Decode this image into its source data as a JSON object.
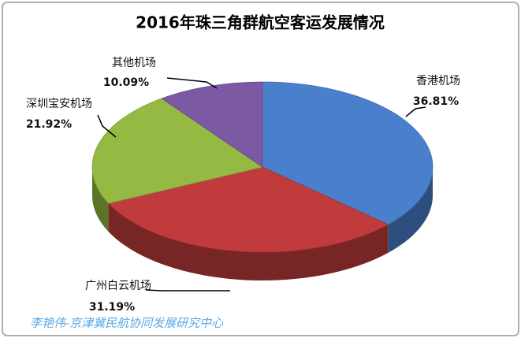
{
  "chart_data": {
    "type": "pie",
    "title": "2016年珠三角群航空客运发展情况",
    "categories": [
      "香港机场",
      "广州白云机场",
      "深圳宝安机场",
      "其他机场"
    ],
    "values": [
      36.81,
      31.19,
      21.92,
      10.09
    ],
    "value_labels": [
      "36.81%",
      "31.19%",
      "21.92%",
      "10.09%"
    ],
    "colors": [
      "#4a7fcb",
      "#c23b3c",
      "#95ba44",
      "#7c5aa3"
    ],
    "watermark": "李艳伟-京津冀民航协同发展研究中心"
  }
}
